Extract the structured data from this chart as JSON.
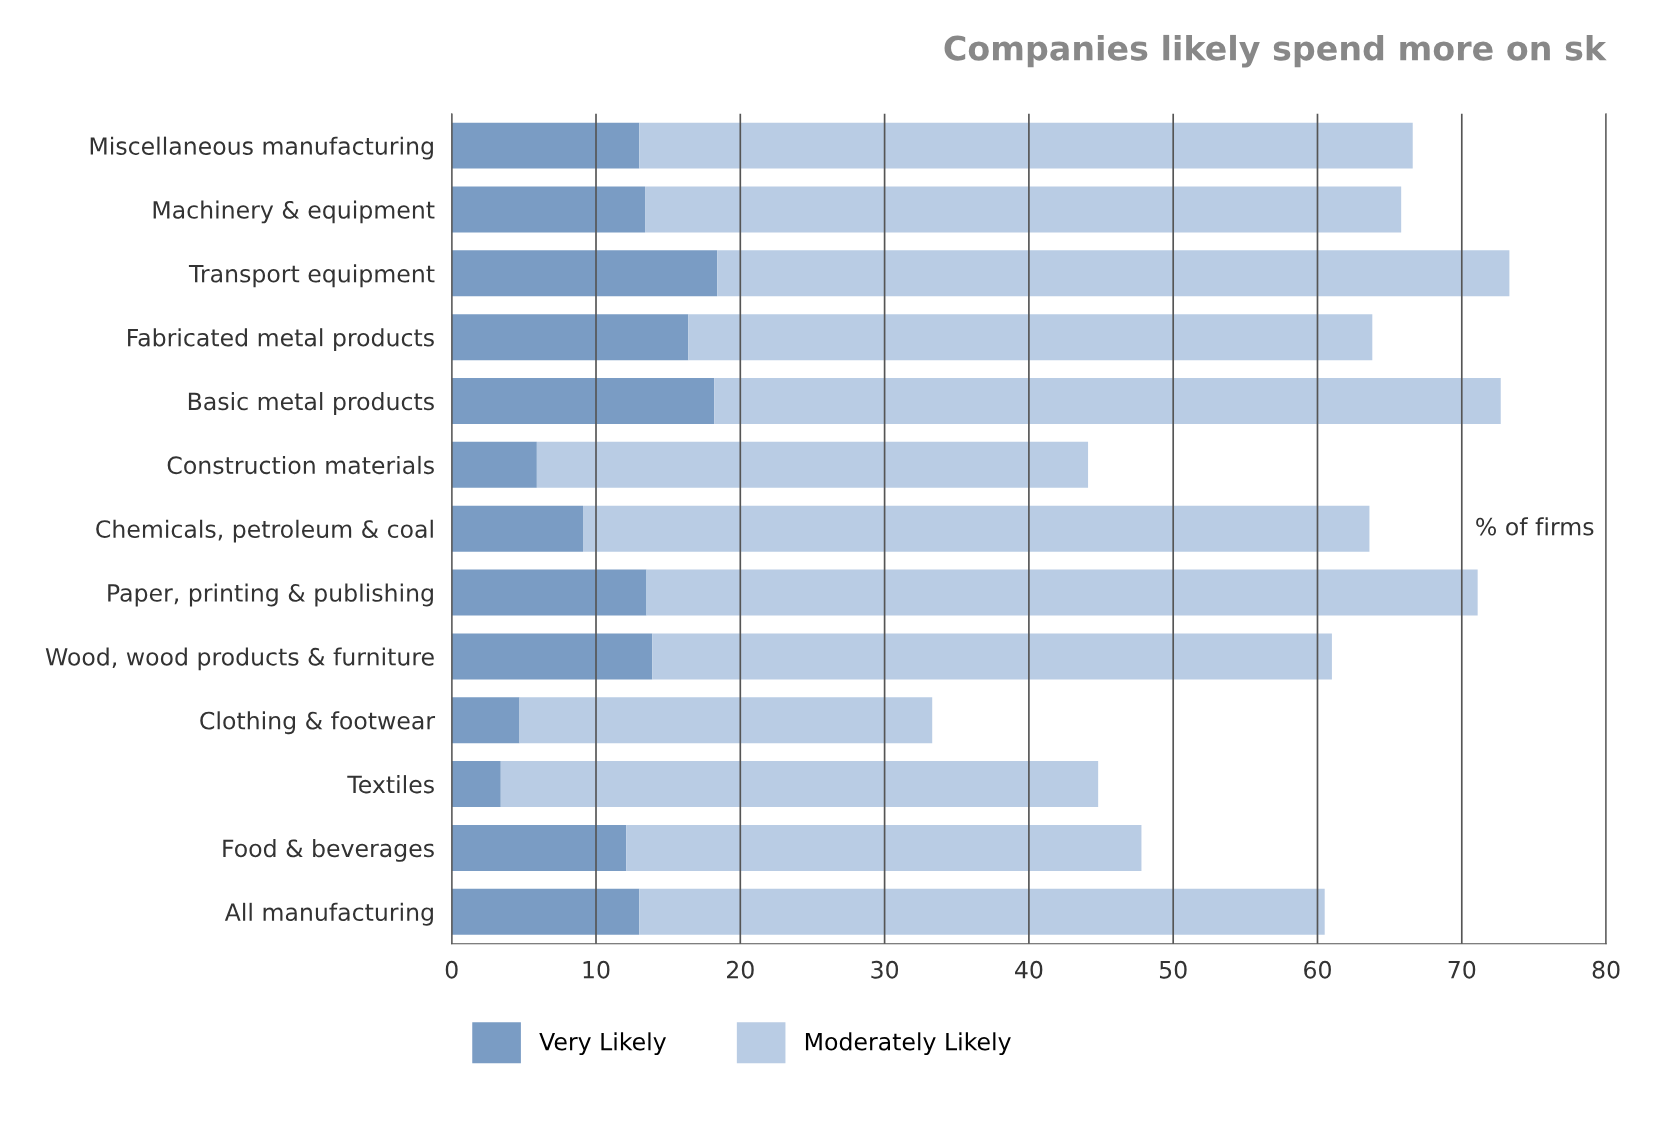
{
  "chart_data": {
    "type": "bar",
    "orientation": "horizontal",
    "stacked": true,
    "title": "Companies likely spend more on sk",
    "xlabel": "% of firms",
    "categories": [
      "Miscellaneous manufacturing",
      "Machinery & equipment",
      "Transport equipment",
      "Fabricated metal products",
      "Basic metal products",
      "Construction materials",
      "Chemicals, petroleum & coal",
      "Paper, printing & publishing",
      "Wood, wood products & furniture",
      "Clothing & footwear",
      "Textiles",
      "Food & beverages",
      "All manufacturing"
    ],
    "series": [
      {
        "name": "Very Likely",
        "color": "#7a9cc4",
        "values": [
          13.0,
          13.4,
          18.4,
          16.4,
          18.2,
          5.9,
          9.1,
          13.5,
          13.9,
          4.7,
          3.4,
          12.1,
          13.0
        ]
      },
      {
        "name": "Moderately Likely",
        "color": "#b9cce4",
        "values": [
          53.6,
          52.4,
          54.9,
          47.4,
          54.5,
          38.2,
          54.5,
          57.6,
          47.1,
          28.6,
          41.4,
          35.7,
          47.5
        ]
      }
    ],
    "xlim": [
      0,
      80
    ],
    "xticks": [
      0,
      10,
      20,
      30,
      40,
      50,
      60,
      70,
      80
    ],
    "grid": "x",
    "legend": "bottom"
  }
}
